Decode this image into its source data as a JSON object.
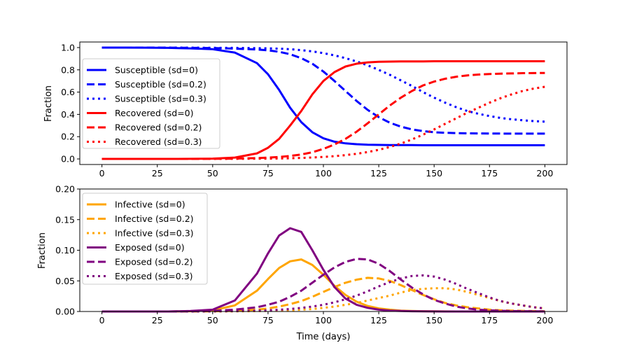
{
  "chart_data": [
    {
      "type": "line",
      "xlabel": "",
      "ylabel": "Fraction",
      "xlim": [
        -10,
        210
      ],
      "ylim": [
        -0.05,
        1.05
      ],
      "xticks": [
        0,
        25,
        50,
        75,
        100,
        125,
        150,
        175,
        200
      ],
      "xtick_labels": [
        "0",
        "25",
        "50",
        "75",
        "100",
        "125",
        "150",
        "175",
        "200"
      ],
      "yticks": [
        0,
        0.2,
        0.4,
        0.6,
        0.8,
        1.0
      ],
      "ytick_labels": [
        "0.0",
        "0.2",
        "0.4",
        "0.6",
        "0.8",
        "1.0"
      ],
      "grid": false,
      "legend_position": "center-left",
      "x": [
        0,
        10,
        20,
        30,
        40,
        50,
        60,
        70,
        75,
        80,
        85,
        90,
        95,
        100,
        105,
        110,
        115,
        120,
        125,
        130,
        135,
        140,
        145,
        150,
        155,
        160,
        165,
        170,
        175,
        180,
        185,
        190,
        195,
        200
      ],
      "series": [
        {
          "name": "Susceptible (sd=0)",
          "color": "#0000ff",
          "style": "solid",
          "values": [
            1.0,
            1.0,
            0.999,
            0.997,
            0.993,
            0.985,
            0.955,
            0.86,
            0.76,
            0.62,
            0.46,
            0.33,
            0.24,
            0.185,
            0.155,
            0.14,
            0.132,
            0.128,
            0.126,
            0.125,
            0.124,
            0.124,
            0.123,
            0.123,
            0.123,
            0.123,
            0.123,
            0.123,
            0.123,
            0.123,
            0.123,
            0.123,
            0.123,
            0.123
          ]
        },
        {
          "name": "Susceptible (sd=0.2)",
          "color": "#0000ff",
          "style": "dashed",
          "values": [
            1.0,
            1.0,
            1.0,
            0.999,
            0.998,
            0.996,
            0.99,
            0.983,
            0.975,
            0.962,
            0.94,
            0.905,
            0.855,
            0.785,
            0.7,
            0.61,
            0.52,
            0.44,
            0.375,
            0.325,
            0.29,
            0.265,
            0.25,
            0.24,
            0.235,
            0.232,
            0.23,
            0.229,
            0.228,
            0.228,
            0.227,
            0.227,
            0.227,
            0.227
          ]
        },
        {
          "name": "Susceptible (sd=0.3)",
          "color": "#0000ff",
          "style": "dotted",
          "values": [
            1.0,
            1.0,
            1.0,
            1.0,
            0.999,
            0.998,
            0.997,
            0.995,
            0.993,
            0.99,
            0.985,
            0.977,
            0.966,
            0.95,
            0.93,
            0.905,
            0.875,
            0.84,
            0.8,
            0.755,
            0.705,
            0.655,
            0.6,
            0.55,
            0.505,
            0.465,
            0.43,
            0.405,
            0.385,
            0.368,
            0.356,
            0.347,
            0.34,
            0.335
          ]
        },
        {
          "name": "Recovered (sd=0)",
          "color": "#ff0000",
          "style": "solid",
          "values": [
            0.0,
            0.0,
            0.0,
            0.0,
            0.001,
            0.003,
            0.012,
            0.05,
            0.1,
            0.18,
            0.3,
            0.43,
            0.58,
            0.7,
            0.78,
            0.83,
            0.855,
            0.867,
            0.872,
            0.874,
            0.875,
            0.876,
            0.876,
            0.877,
            0.877,
            0.877,
            0.877,
            0.877,
            0.877,
            0.877,
            0.877,
            0.877,
            0.877,
            0.877
          ]
        },
        {
          "name": "Recovered (sd=0.2)",
          "color": "#ff0000",
          "style": "dashed",
          "values": [
            0.0,
            0.0,
            0.0,
            0.0,
            0.0,
            0.001,
            0.003,
            0.008,
            0.012,
            0.018,
            0.027,
            0.04,
            0.06,
            0.09,
            0.13,
            0.18,
            0.245,
            0.32,
            0.4,
            0.48,
            0.55,
            0.61,
            0.66,
            0.695,
            0.72,
            0.738,
            0.75,
            0.758,
            0.763,
            0.766,
            0.768,
            0.77,
            0.771,
            0.772
          ]
        },
        {
          "name": "Recovered (sd=0.3)",
          "color": "#ff0000",
          "style": "dotted",
          "values": [
            0.0,
            0.0,
            0.0,
            0.0,
            0.0,
            0.0,
            0.001,
            0.002,
            0.003,
            0.004,
            0.006,
            0.009,
            0.013,
            0.018,
            0.025,
            0.034,
            0.046,
            0.062,
            0.082,
            0.107,
            0.138,
            0.175,
            0.218,
            0.265,
            0.315,
            0.365,
            0.415,
            0.46,
            0.505,
            0.545,
            0.58,
            0.61,
            0.632,
            0.648
          ]
        }
      ]
    },
    {
      "type": "line",
      "xlabel": "Time (days)",
      "ylabel": "Fraction",
      "xlim": [
        -10,
        210
      ],
      "ylim": [
        0,
        0.2
      ],
      "xticks": [
        0,
        25,
        50,
        75,
        100,
        125,
        150,
        175,
        200
      ],
      "xtick_labels": [
        "0",
        "25",
        "50",
        "75",
        "100",
        "125",
        "150",
        "175",
        "200"
      ],
      "yticks": [
        0,
        0.05,
        0.1,
        0.15,
        0.2
      ],
      "ytick_labels": [
        "0.00",
        "0.05",
        "0.10",
        "0.15",
        "0.20"
      ],
      "grid": false,
      "legend_position": "upper-left",
      "x": [
        0,
        10,
        20,
        30,
        40,
        50,
        60,
        70,
        75,
        80,
        85,
        90,
        95,
        100,
        105,
        110,
        115,
        120,
        125,
        130,
        135,
        140,
        145,
        150,
        155,
        160,
        165,
        170,
        175,
        180,
        185,
        190,
        195,
        200
      ],
      "series": [
        {
          "name": "Infective (sd=0)",
          "color": "#ffa500",
          "style": "solid",
          "values": [
            0.0,
            0.0,
            0.0,
            0.0,
            0.0005,
            0.002,
            0.01,
            0.034,
            0.053,
            0.071,
            0.082,
            0.085,
            0.076,
            0.06,
            0.042,
            0.027,
            0.016,
            0.009,
            0.005,
            0.003,
            0.0015,
            0.0008,
            0.0004,
            0.0002,
            0.0001,
            0.0,
            0.0,
            0.0,
            0.0,
            0.0,
            0.0,
            0.0,
            0.0,
            0.0
          ]
        },
        {
          "name": "Infective (sd=0.2)",
          "color": "#ffa500",
          "style": "dashed",
          "values": [
            0.0,
            0.0,
            0.0,
            0.0,
            0.0,
            0.0003,
            0.001,
            0.003,
            0.005,
            0.008,
            0.012,
            0.017,
            0.024,
            0.032,
            0.04,
            0.047,
            0.052,
            0.055,
            0.054,
            0.05,
            0.043,
            0.035,
            0.027,
            0.02,
            0.014,
            0.01,
            0.007,
            0.005,
            0.003,
            0.002,
            0.0015,
            0.001,
            0.0007,
            0.0005
          ]
        },
        {
          "name": "Infective (sd=0.3)",
          "color": "#ffa500",
          "style": "dotted",
          "values": [
            0.0,
            0.0,
            0.0,
            0.0,
            0.0,
            0.0,
            0.0002,
            0.0006,
            0.001,
            0.0015,
            0.002,
            0.003,
            0.004,
            0.006,
            0.008,
            0.011,
            0.014,
            0.018,
            0.022,
            0.026,
            0.031,
            0.035,
            0.037,
            0.038,
            0.038,
            0.036,
            0.032,
            0.027,
            0.022,
            0.017,
            0.013,
            0.01,
            0.007,
            0.005
          ]
        },
        {
          "name": "Exposed (sd=0)",
          "color": "#800080",
          "style": "solid",
          "values": [
            0.0,
            0.0,
            0.0,
            0.0,
            0.0008,
            0.003,
            0.018,
            0.062,
            0.095,
            0.124,
            0.136,
            0.13,
            0.1,
            0.068,
            0.04,
            0.021,
            0.011,
            0.006,
            0.003,
            0.0015,
            0.0008,
            0.0004,
            0.0002,
            0.0001,
            0.0,
            0.0,
            0.0,
            0.0,
            0.0,
            0.0,
            0.0,
            0.0,
            0.0,
            0.0
          ]
        },
        {
          "name": "Exposed (sd=0.2)",
          "color": "#800080",
          "style": "dashed",
          "values": [
            0.0,
            0.0,
            0.0,
            0.0,
            0.0003,
            0.001,
            0.003,
            0.007,
            0.011,
            0.016,
            0.024,
            0.034,
            0.047,
            0.06,
            0.072,
            0.081,
            0.086,
            0.085,
            0.078,
            0.066,
            0.052,
            0.039,
            0.028,
            0.019,
            0.013,
            0.008,
            0.005,
            0.003,
            0.002,
            0.0012,
            0.0008,
            0.0005,
            0.0003,
            0.0002
          ]
        },
        {
          "name": "Exposed (sd=0.3)",
          "color": "#800080",
          "style": "dotted",
          "values": [
            0.0,
            0.0,
            0.0,
            0.0,
            0.0,
            0.0002,
            0.0006,
            0.0015,
            0.002,
            0.003,
            0.004,
            0.006,
            0.008,
            0.011,
            0.015,
            0.02,
            0.026,
            0.033,
            0.041,
            0.048,
            0.054,
            0.058,
            0.059,
            0.057,
            0.052,
            0.045,
            0.037,
            0.03,
            0.023,
            0.017,
            0.013,
            0.01,
            0.007,
            0.005
          ]
        }
      ]
    }
  ]
}
